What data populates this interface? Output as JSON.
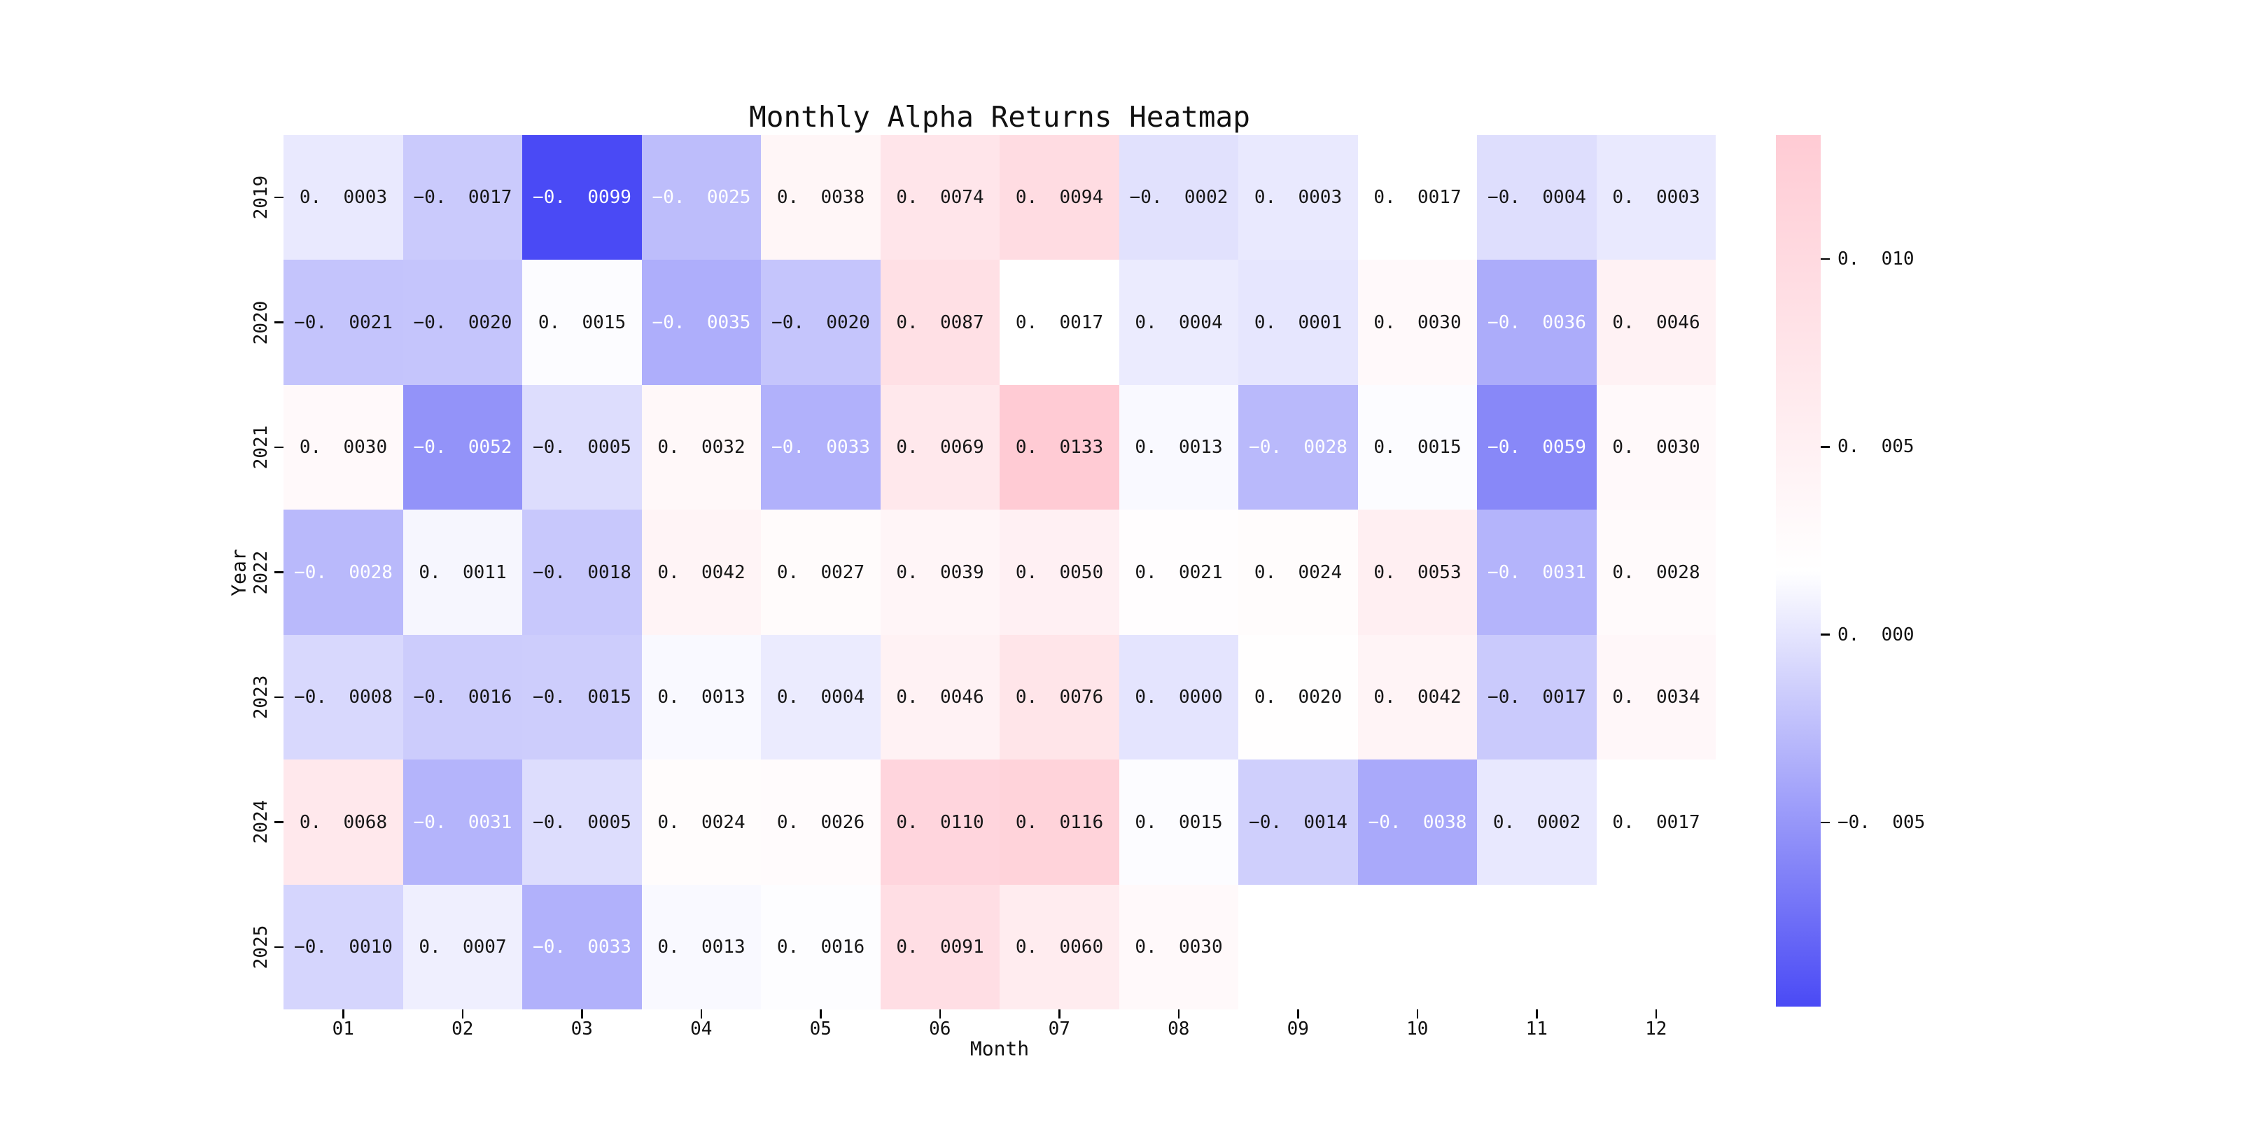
{
  "figure": {
    "background": "#ffffff"
  },
  "chart_data": {
    "type": "heatmap",
    "title": "Monthly Alpha Returns Heatmap",
    "xlabel": "Month",
    "ylabel": "Year",
    "x_categories": [
      "01",
      "02",
      "03",
      "04",
      "05",
      "06",
      "07",
      "08",
      "09",
      "10",
      "11",
      "12"
    ],
    "y_categories": [
      "2019",
      "2020",
      "2021",
      "2022",
      "2023",
      "2024",
      "2025"
    ],
    "rows": [
      {
        "year": "2019",
        "values": [
          0.0003,
          -0.0017,
          -0.0099,
          -0.0025,
          0.0038,
          0.0074,
          0.0094,
          -0.0002,
          0.0003,
          0.0017,
          -0.0004,
          0.0003
        ]
      },
      {
        "year": "2020",
        "values": [
          -0.0021,
          -0.002,
          0.0015,
          -0.0035,
          -0.002,
          0.0087,
          0.0017,
          0.0004,
          0.0001,
          0.003,
          -0.0036,
          0.0046
        ]
      },
      {
        "year": "2021",
        "values": [
          0.003,
          -0.0052,
          -0.0005,
          0.0032,
          -0.0033,
          0.0069,
          0.0133,
          0.0013,
          -0.0028,
          0.0015,
          -0.0059,
          0.003
        ]
      },
      {
        "year": "2022",
        "values": [
          -0.0028,
          0.0011,
          -0.0018,
          0.0042,
          0.0027,
          0.0039,
          0.005,
          0.0021,
          0.0024,
          0.0053,
          -0.0031,
          0.0028
        ]
      },
      {
        "year": "2023",
        "values": [
          -0.0008,
          -0.0016,
          -0.0015,
          0.0013,
          0.0004,
          0.0046,
          0.0076,
          0.0,
          0.002,
          0.0042,
          -0.0017,
          0.0034
        ]
      },
      {
        "year": "2024",
        "values": [
          0.0068,
          -0.0031,
          -0.0005,
          0.0024,
          0.0026,
          0.011,
          0.0116,
          0.0015,
          -0.0014,
          -0.0038,
          0.0002,
          0.0017
        ]
      },
      {
        "year": "2025",
        "values": [
          -0.001,
          0.0007,
          -0.0033,
          0.0013,
          0.0016,
          0.0091,
          0.006,
          0.003,
          null,
          null,
          null,
          null
        ]
      }
    ],
    "vmin": -0.0099,
    "vmax": 0.0133,
    "annotation_decimals": 4,
    "annotation_dark_color": "#161616",
    "annotation_light_color": "#ffffff",
    "white_text_threshold": -0.00225,
    "colormap": {
      "low": "#4A4AF5",
      "mid": "#FFFFFF",
      "high": "#FFCBD4",
      "mid_value": 0.0017
    },
    "colorbar": {
      "tick_values": [
        0.01,
        0.005,
        0.0,
        -0.005
      ],
      "tick_labels": [
        "0.010",
        "0.005",
        "0.000",
        "-0.005"
      ],
      "tick_decimals": 3,
      "position": "right"
    },
    "grid": false,
    "legend": null,
    "missing_cells": "2025: months 09-12 empty"
  }
}
